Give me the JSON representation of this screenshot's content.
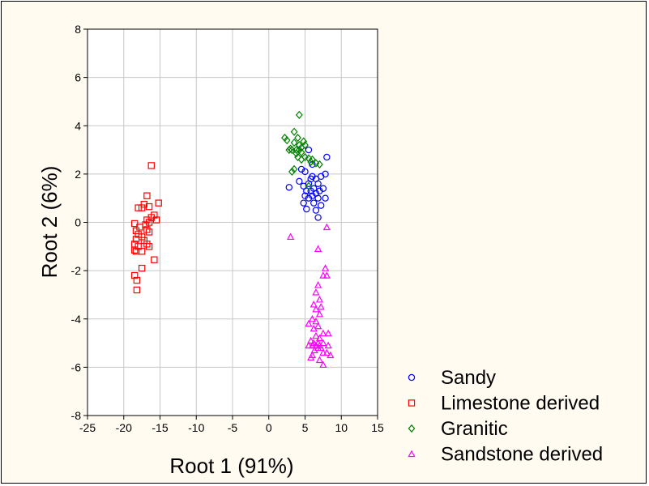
{
  "chart_data": {
    "type": "scatter",
    "xlabel": "Root 1 (91%)",
    "ylabel": "Root 2 (6%)",
    "xlim": [
      -25,
      15
    ],
    "ylim": [
      -8,
      8
    ],
    "x_ticks": [
      -25,
      -20,
      -15,
      -10,
      -5,
      0,
      5,
      10,
      15
    ],
    "y_ticks": [
      -8,
      -6,
      -4,
      -2,
      0,
      2,
      4,
      6,
      8
    ],
    "grid": true,
    "legend_position": "bottom-right, outside plot",
    "series": [
      {
        "name": "Sandy",
        "marker": "circle",
        "color": "#0000ff",
        "points": [
          [
            5.5,
            3.0
          ],
          [
            8.0,
            2.7
          ],
          [
            6.0,
            2.4
          ],
          [
            4.5,
            2.2
          ],
          [
            5.0,
            2.1
          ],
          [
            7.8,
            2.0
          ],
          [
            7.2,
            1.9
          ],
          [
            6.0,
            1.9
          ],
          [
            5.8,
            1.8
          ],
          [
            6.5,
            1.8
          ],
          [
            4.2,
            1.7
          ],
          [
            5.5,
            1.6
          ],
          [
            6.8,
            1.6
          ],
          [
            4.8,
            1.5
          ],
          [
            2.8,
            1.45
          ],
          [
            6.2,
            1.4
          ],
          [
            7.5,
            1.4
          ],
          [
            5.2,
            1.3
          ],
          [
            5.8,
            1.3
          ],
          [
            7.0,
            1.3
          ],
          [
            6.5,
            1.2
          ],
          [
            5.0,
            1.1
          ],
          [
            6.0,
            1.1
          ],
          [
            5.5,
            1.0
          ],
          [
            6.8,
            1.0
          ],
          [
            7.8,
            1.0
          ],
          [
            4.8,
            0.8
          ],
          [
            6.2,
            0.8
          ],
          [
            7.2,
            0.7
          ],
          [
            5.2,
            0.55
          ],
          [
            6.5,
            0.5
          ],
          [
            6.8,
            0.2
          ]
        ]
      },
      {
        "name": "Limestone derived",
        "marker": "square",
        "color": "#ff0000",
        "points": [
          [
            -16.2,
            2.35
          ],
          [
            -16.8,
            1.1
          ],
          [
            -15.2,
            0.8
          ],
          [
            -17.2,
            0.75
          ],
          [
            -17.5,
            0.6
          ],
          [
            -16.5,
            0.65
          ],
          [
            -18.0,
            0.6
          ],
          [
            -15.8,
            0.3
          ],
          [
            -16.2,
            0.2
          ],
          [
            -16.8,
            0.1
          ],
          [
            -15.5,
            0.1
          ],
          [
            -16.5,
            0.0
          ],
          [
            -18.5,
            -0.05
          ],
          [
            -17.0,
            -0.1
          ],
          [
            -17.8,
            -0.2
          ],
          [
            -18.3,
            -0.35
          ],
          [
            -16.8,
            -0.3
          ],
          [
            -16.5,
            -0.4
          ],
          [
            -18.0,
            -0.5
          ],
          [
            -17.5,
            -0.6
          ],
          [
            -18.3,
            -0.7
          ],
          [
            -17.2,
            -0.75
          ],
          [
            -16.8,
            -0.9
          ],
          [
            -18.5,
            -0.9
          ],
          [
            -18.0,
            -1.0
          ],
          [
            -16.5,
            -1.0
          ],
          [
            -18.5,
            -1.15
          ],
          [
            -18.3,
            -1.2
          ],
          [
            -17.5,
            -1.2
          ],
          [
            -15.8,
            -1.55
          ],
          [
            -17.5,
            -1.9
          ],
          [
            -18.5,
            -2.2
          ],
          [
            -18.2,
            -2.4
          ],
          [
            -18.2,
            -2.8
          ]
        ]
      },
      {
        "name": "Granitic",
        "marker": "diamond",
        "color": "#008000",
        "points": [
          [
            4.2,
            4.45
          ],
          [
            3.5,
            3.75
          ],
          [
            4.0,
            3.5
          ],
          [
            2.2,
            3.5
          ],
          [
            2.5,
            3.4
          ],
          [
            4.8,
            3.35
          ],
          [
            3.5,
            3.3
          ],
          [
            4.2,
            3.2
          ],
          [
            5.0,
            3.2
          ],
          [
            4.5,
            3.1
          ],
          [
            3.0,
            3.05
          ],
          [
            3.8,
            3.0
          ],
          [
            4.2,
            3.0
          ],
          [
            2.8,
            3.0
          ],
          [
            3.2,
            3.0
          ],
          [
            4.5,
            2.9
          ],
          [
            3.8,
            2.85
          ],
          [
            4.0,
            2.7
          ],
          [
            5.0,
            2.7
          ],
          [
            5.5,
            2.65
          ],
          [
            4.5,
            2.6
          ],
          [
            6.0,
            2.6
          ],
          [
            5.8,
            2.5
          ],
          [
            6.5,
            2.45
          ],
          [
            7.0,
            2.4
          ],
          [
            3.5,
            2.2
          ],
          [
            3.2,
            2.1
          ],
          [
            5.5,
            1.5
          ]
        ]
      },
      {
        "name": "Sandstone derived",
        "marker": "triangle",
        "color": "#ff00ff",
        "points": [
          [
            3.0,
            -0.6
          ],
          [
            8.0,
            -0.2
          ],
          [
            6.8,
            -1.1
          ],
          [
            7.8,
            -1.9
          ],
          [
            7.5,
            -2.2
          ],
          [
            8.0,
            -2.2
          ],
          [
            6.8,
            -2.6
          ],
          [
            6.5,
            -2.9
          ],
          [
            7.0,
            -3.2
          ],
          [
            6.2,
            -3.4
          ],
          [
            7.2,
            -3.5
          ],
          [
            6.5,
            -3.6
          ],
          [
            7.0,
            -3.8
          ],
          [
            6.0,
            -4.0
          ],
          [
            6.5,
            -4.1
          ],
          [
            5.5,
            -4.2
          ],
          [
            6.8,
            -4.3
          ],
          [
            6.2,
            -4.4
          ],
          [
            7.5,
            -4.6
          ],
          [
            8.2,
            -4.6
          ],
          [
            6.5,
            -4.7
          ],
          [
            7.0,
            -4.8
          ],
          [
            5.8,
            -4.9
          ],
          [
            6.8,
            -5.0
          ],
          [
            6.2,
            -5.0
          ],
          [
            7.5,
            -5.0
          ],
          [
            6.0,
            -5.1
          ],
          [
            6.5,
            -5.1
          ],
          [
            7.0,
            -5.1
          ],
          [
            8.2,
            -5.1
          ],
          [
            5.5,
            -5.1
          ],
          [
            6.8,
            -5.2
          ],
          [
            7.2,
            -5.2
          ],
          [
            6.3,
            -5.3
          ],
          [
            8.0,
            -5.4
          ],
          [
            7.5,
            -5.4
          ],
          [
            6.0,
            -5.5
          ],
          [
            8.5,
            -5.5
          ],
          [
            5.8,
            -5.6
          ],
          [
            7.0,
            -5.7
          ],
          [
            7.5,
            -5.9
          ]
        ]
      }
    ]
  }
}
